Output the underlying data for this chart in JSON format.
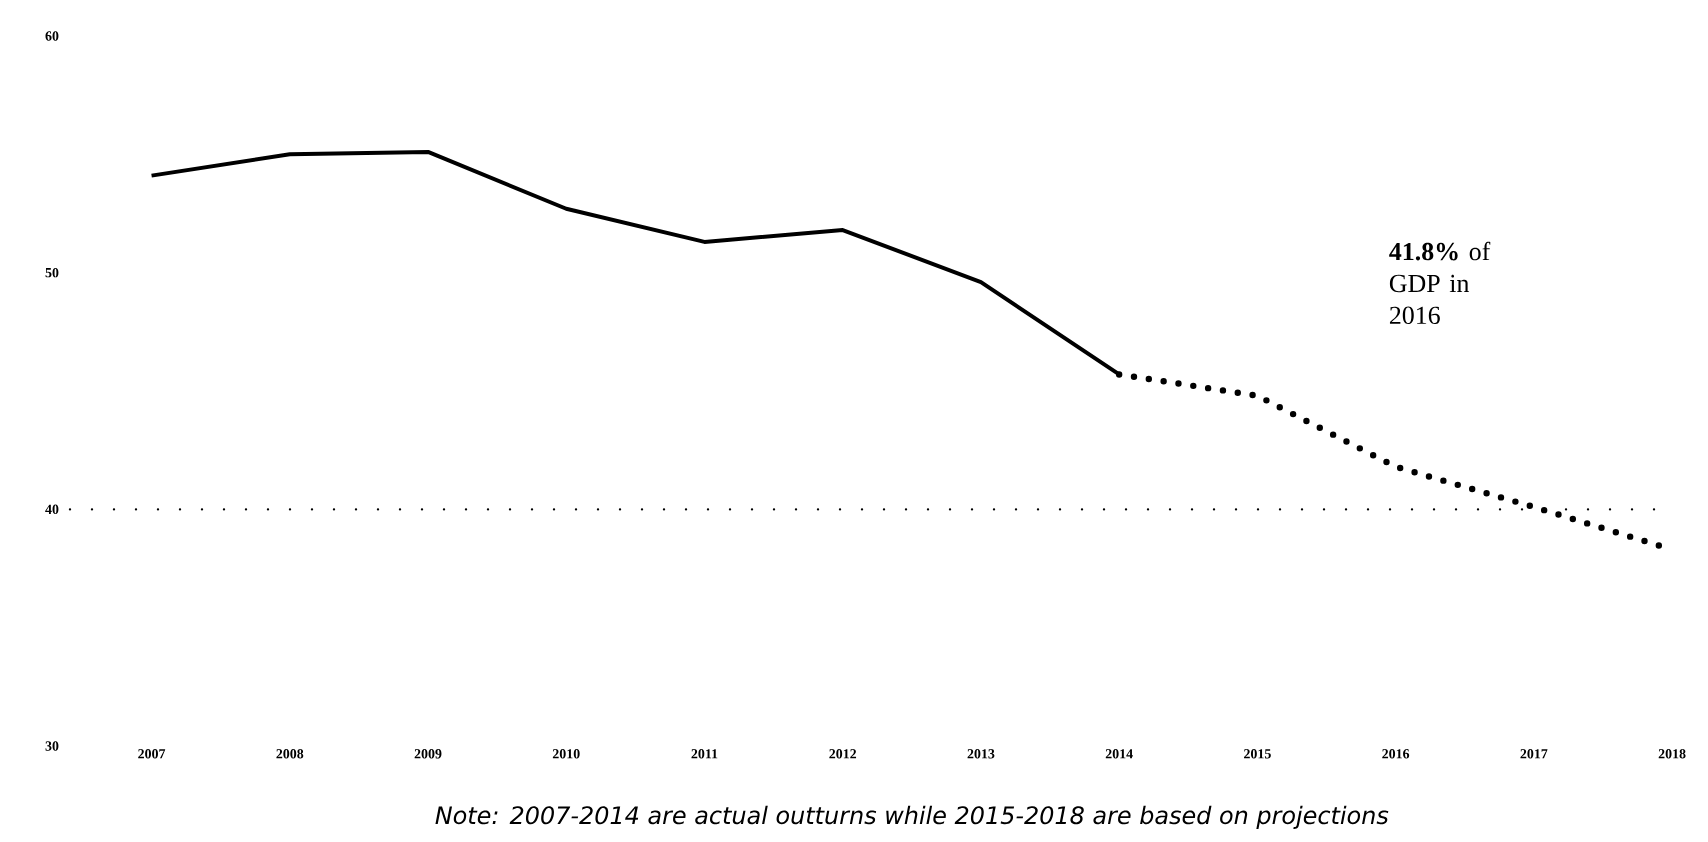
{
  "chart_data": {
    "type": "line",
    "categories": [
      "2007",
      "2008",
      "2009",
      "2010",
      "2011",
      "2012",
      "2013",
      "2014",
      "2015",
      "2016",
      "2017",
      "2018"
    ],
    "series": [
      {
        "color": "#000000",
        "line_style": "solid",
        "values": [
          54.1,
          55.0,
          55.1,
          52.7,
          51.3,
          51.8,
          49.6,
          45.7,
          null,
          null,
          null,
          null
        ]
      },
      {
        "color": "#000000",
        "line_style": "dotted",
        "values": [
          null,
          null,
          null,
          null,
          null,
          null,
          null,
          45.7,
          44.8,
          41.8,
          40.1,
          38.3
        ]
      }
    ],
    "ylim": [
      30,
      60
    ],
    "yticks": [
      30,
      40,
      50,
      60
    ],
    "ref_lines": [
      {
        "axis": "y",
        "value": 40,
        "line_style": "dotted",
        "color": "#000000"
      }
    ],
    "annotations": [
      "**41.8%** of GDP in 2016",
      "Note: 2007-2014 are actual outturns while 2015-2018 are based on projections"
    ]
  }
}
